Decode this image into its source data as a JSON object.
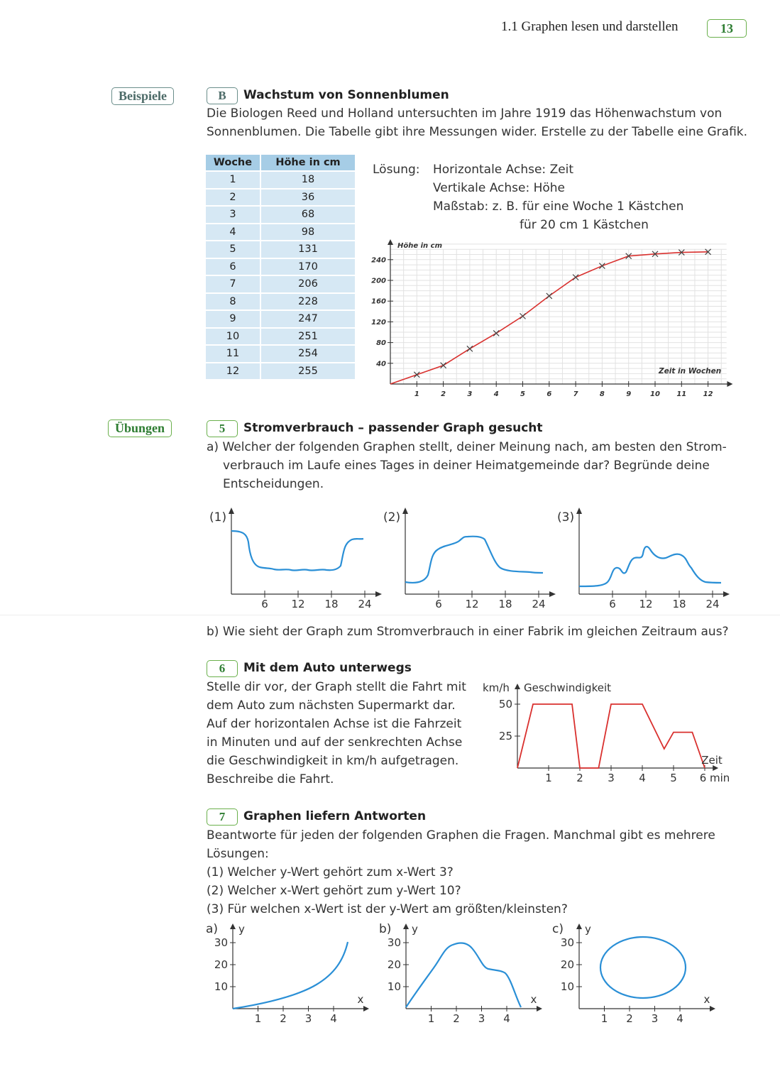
{
  "header": {
    "section_title": "1.1 Graphen lesen und darstellen",
    "page_number": "13"
  },
  "sidebar": {
    "beispiele": "Beispiele",
    "uebungen": "Übungen"
  },
  "example_b": {
    "badge": "B",
    "title": "Wachstum von Sonnenblumen",
    "text_line1": "Die Biologen Reed und Holland untersuchten im Jahre 1919 das Höhenwachstum von",
    "text_line2": "Sonnenblumen. Die Tabelle gibt ihre Messungen wider. Erstelle zu der Tabelle eine Grafik.",
    "table": {
      "headers": [
        "Woche",
        "Höhe in cm"
      ],
      "rows": [
        [
          "1",
          "18"
        ],
        [
          "2",
          "36"
        ],
        [
          "3",
          "68"
        ],
        [
          "4",
          "98"
        ],
        [
          "5",
          "131"
        ],
        [
          "6",
          "170"
        ],
        [
          "7",
          "206"
        ],
        [
          "8",
          "228"
        ],
        [
          "9",
          "247"
        ],
        [
          "10",
          "251"
        ],
        [
          "11",
          "254"
        ],
        [
          "12",
          "255"
        ]
      ]
    },
    "solution": {
      "label": "Lösung:",
      "line1": "Horizontale Achse: Zeit",
      "line2": "Vertikale Achse: Höhe",
      "line3": "Maßstab: z. B. für eine Woche 1 Kästchen",
      "line4": "für 20 cm 1 Kästchen"
    }
  },
  "chart_data": [
    {
      "type": "line",
      "ylabel": "Höhe in cm",
      "xlabel": "Zeit in Wochen",
      "x": [
        1,
        2,
        3,
        4,
        5,
        6,
        7,
        8,
        9,
        10,
        11,
        12
      ],
      "values": [
        18,
        36,
        68,
        98,
        131,
        170,
        206,
        228,
        247,
        251,
        254,
        255
      ],
      "xticks": [
        "1",
        "2",
        "3",
        "4",
        "5",
        "6",
        "7",
        "8",
        "9",
        "10",
        "11",
        "12"
      ],
      "yticks": [
        "40",
        "80",
        "120",
        "160",
        "200",
        "240"
      ],
      "xlim": [
        0,
        12.5
      ],
      "ylim": [
        0,
        270
      ],
      "grid": true,
      "color": "#d9302e"
    },
    {
      "type": "line",
      "ylabel": "km/h",
      "ylabel2": "Geschwindigkeit",
      "xlabel": "Zeit",
      "x": [
        0,
        0.5,
        1.75,
        2,
        2.6,
        3,
        4,
        4.7,
        5,
        5.6,
        6
      ],
      "values": [
        0,
        50,
        50,
        0,
        0,
        50,
        50,
        15,
        28,
        28,
        0
      ],
      "xticks": [
        "1",
        "2",
        "3",
        "4",
        "5",
        "6 min"
      ],
      "yticks": [
        "25",
        "50"
      ],
      "xlim": [
        0,
        6.3
      ],
      "ylim": [
        0,
        58
      ],
      "color": "#d9302e"
    }
  ],
  "exercise5": {
    "badge": "5",
    "title": "Stromverbrauch – passender Graph gesucht",
    "a_line1": "a) Welcher der folgenden Graphen stellt, deiner Meinung nach, am besten den Strom-",
    "a_line2": "verbrauch im Laufe eines Tages in deiner Heimatgemeinde dar? Begründe deine",
    "a_line3": "Entscheidungen.",
    "graphs": [
      {
        "label": "(1)",
        "ticks": [
          "6",
          "12",
          "18",
          "24"
        ]
      },
      {
        "label": "(2)",
        "ticks": [
          "6",
          "12",
          "18",
          "24"
        ]
      },
      {
        "label": "(3)",
        "ticks": [
          "6",
          "12",
          "18",
          "24"
        ]
      }
    ],
    "b": "b) Wie sieht der Graph zum Stromverbrauch in einer Fabrik im gleichen Zeitraum aus?"
  },
  "exercise6": {
    "badge": "6",
    "title": "Mit dem Auto unterwegs",
    "lines": [
      "Stelle dir vor, der Graph stellt die Fahrt mit",
      "dem Auto zum nächsten Supermarkt dar.",
      "Auf der horizontalen Achse ist die Fahrzeit",
      "in Minuten und auf der senkrechten Achse",
      "die Geschwindigkeit in km/h aufgetragen.",
      "Beschreibe die Fahrt."
    ]
  },
  "exercise7": {
    "badge": "7",
    "title": "Graphen liefern Antworten",
    "intro1": "Beantworte für jeden der folgenden Graphen die Fragen. Manchmal gibt es mehrere",
    "intro2": "Lösungen:",
    "q1": "(1) Welcher y-Wert gehört zum x-Wert 3?",
    "q2": "(2) Welcher x-Wert gehört zum y-Wert 10?",
    "q3": "(3) Für welchen x-Wert ist der y-Wert am größten/kleinsten?",
    "graphs": [
      {
        "label": "a)",
        "yaxis": "y",
        "xaxis": "x",
        "yticks": [
          "10",
          "20",
          "30"
        ],
        "xticks": [
          "1",
          "2",
          "3",
          "4"
        ]
      },
      {
        "label": "b)",
        "yaxis": "y",
        "xaxis": "x",
        "yticks": [
          "10",
          "20",
          "30"
        ],
        "xticks": [
          "1",
          "2",
          "3",
          "4"
        ]
      },
      {
        "label": "c)",
        "yaxis": "y",
        "xaxis": "x",
        "yticks": [
          "10",
          "20",
          "30"
        ],
        "xticks": [
          "1",
          "2",
          "3",
          "4"
        ]
      }
    ]
  }
}
